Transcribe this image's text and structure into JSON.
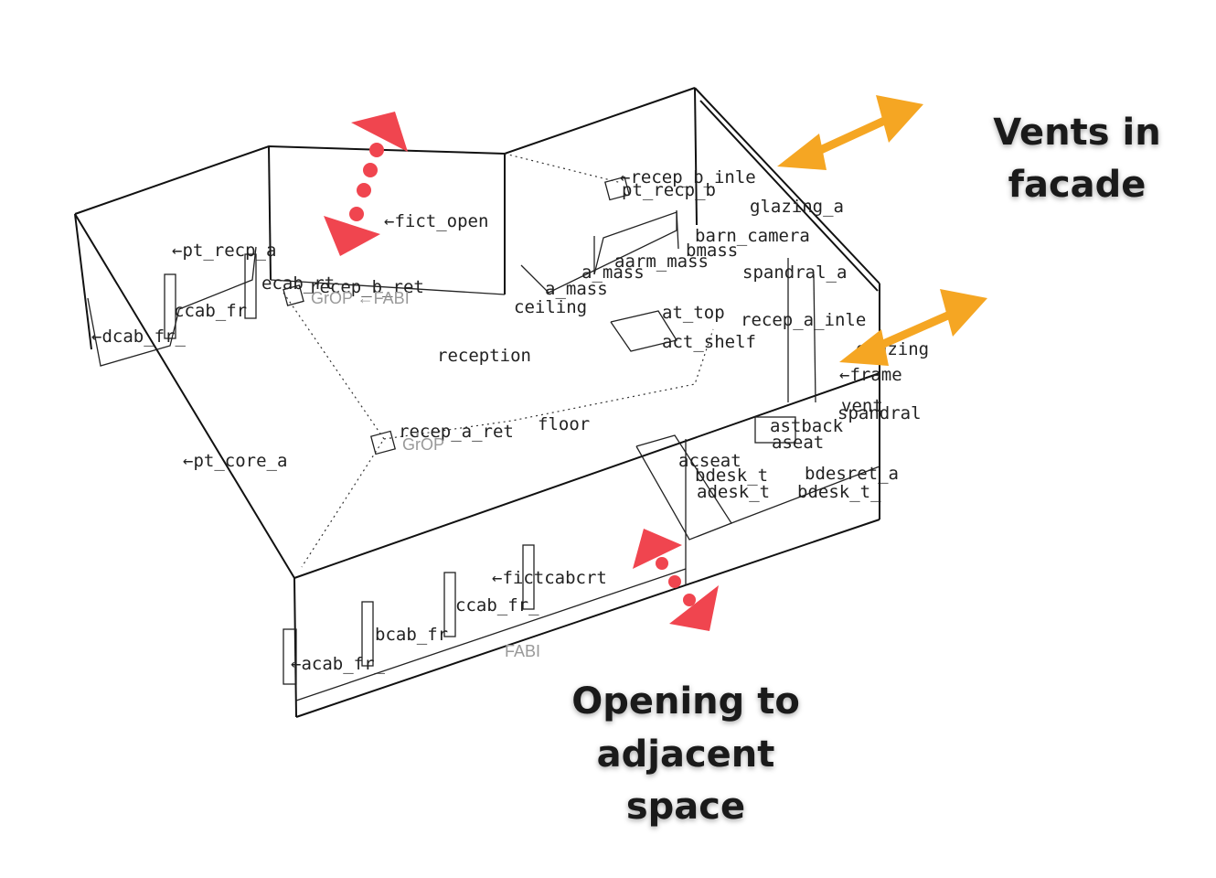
{
  "colors": {
    "vent_arrow": "#F5A623",
    "opening_arrow": "#F0454F",
    "line": "#111111"
  },
  "annotations": {
    "vents_line1": "Vents in",
    "vents_line2": "facade",
    "opening_line1": "Opening to",
    "opening_line2": "adjacent",
    "opening_line3": "space"
  },
  "model": {
    "space_name": "reception",
    "labels": {
      "fict_open": "←fict_open",
      "pt_recp_a": "←pt_recp_a",
      "ecab_rt": "ecab_rt",
      "recep_b_ret": "recep_b_ret",
      "grop_fabi_top": "GrOP ←FABI",
      "ccab_fr": "ccab_fr",
      "dcab_fr": "←dcab_fr_",
      "ceiling": "ceiling",
      "recep_b_inle": "←recep_b_inle",
      "pt_recp_b": "pt_recp_b",
      "glazing_a": "glazing_a",
      "barn_camera": "barn_camera",
      "b_mass": "bmass",
      "aar_mass": "aarm_mass",
      "spandral_a": "spandral_a",
      "a_mass": "a_mass",
      "at_top": "at_top",
      "recep_a_inle": "recep_a_inle",
      "act_shelf": "act_shelf",
      "glazing": "glazing",
      "frame": "←frame",
      "vent": "vent",
      "spandral": "spandral",
      "astback": "astback",
      "aseat": "aseat",
      "acseat": "acseat",
      "bdesk_t": "bdesk_t",
      "bdes_ret_a": "bdesret_a",
      "adesk_t": "adesk_t",
      "bdesk_l": "bdesk_t_",
      "pt_core_a": "←pt_core_a",
      "recep_a_ret": "recep_a_ret",
      "floor": "floor",
      "grop_bottom": "GrOP",
      "fict_cab_crt": "←fictcabcrt",
      "ccab_fr2": "ccab_fr_",
      "bcab_fr": "bcab_fr",
      "acab_fr": "←acab_fr_",
      "fabi_bottom": "FABI"
    }
  }
}
